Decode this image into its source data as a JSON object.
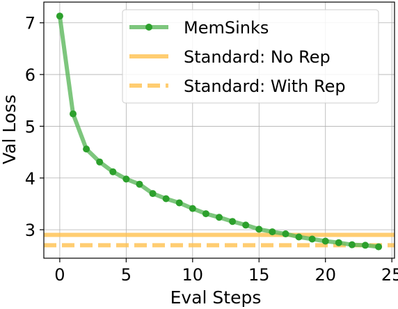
{
  "chart_data": {
    "type": "line",
    "xlabel": "Eval Steps",
    "ylabel": "Val Loss",
    "xlim": [
      -1.2,
      25.2
    ],
    "ylim": [
      2.45,
      7.4
    ],
    "x_ticks": [
      0,
      5,
      10,
      15,
      20,
      25
    ],
    "y_ticks": [
      3,
      4,
      5,
      6,
      7
    ],
    "grid": true,
    "legend_position": "upper-right",
    "series": [
      {
        "name": "MemSinks",
        "style": "line-with-markers",
        "color": "#2ca02c",
        "line_color": "#5cb85c",
        "x": [
          0,
          1,
          2,
          3,
          4,
          5,
          6,
          7,
          8,
          9,
          10,
          11,
          12,
          13,
          14,
          15,
          16,
          17,
          18,
          19,
          20,
          21,
          22,
          23,
          24
        ],
        "y": [
          7.13,
          5.24,
          4.56,
          4.31,
          4.12,
          3.98,
          3.88,
          3.7,
          3.6,
          3.52,
          3.41,
          3.31,
          3.24,
          3.16,
          3.09,
          3.01,
          2.96,
          2.92,
          2.86,
          2.82,
          2.78,
          2.75,
          2.71,
          2.7,
          2.67
        ]
      },
      {
        "name": "Standard: No Rep",
        "style": "hline-solid",
        "color": "#ffc14d",
        "y": 2.9
      },
      {
        "name": "Standard: With Rep",
        "style": "hline-dashed",
        "color": "#ffc14d",
        "y": 2.7
      }
    ]
  }
}
